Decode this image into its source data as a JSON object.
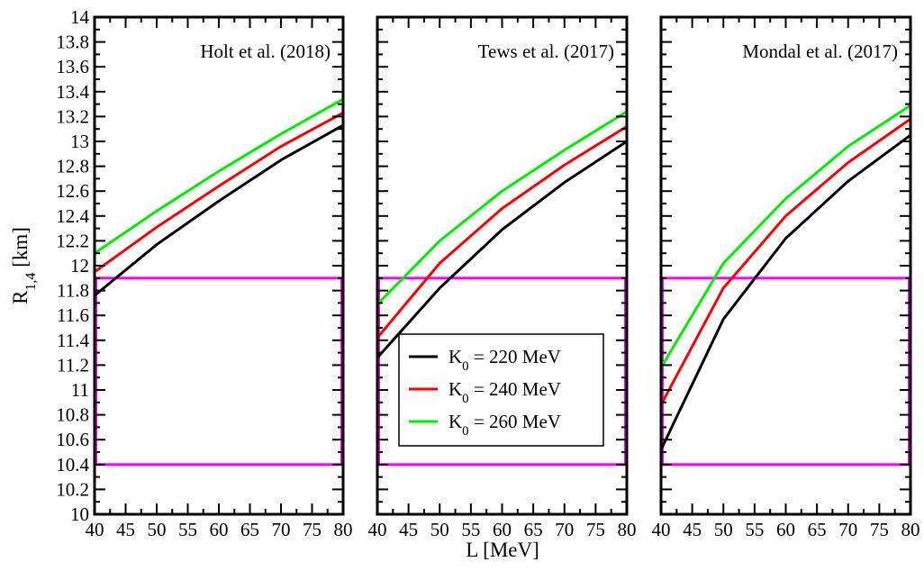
{
  "chart_data": {
    "type": "line",
    "xlabel": "L [MeV]",
    "ylabel": "R",
    "ylabel_sub": "1,4",
    "ylabel_unit": " [km]",
    "xlim": [
      40,
      80
    ],
    "ylim": [
      10,
      14
    ],
    "x_ticks": [
      40,
      45,
      50,
      55,
      60,
      65,
      70,
      75,
      80
    ],
    "x_tick_labels": [
      "40",
      "45",
      "50",
      "55",
      "60",
      "65",
      "70",
      "75",
      "80"
    ],
    "y_ticks": [
      10,
      10.2,
      10.4,
      10.6,
      10.8,
      11,
      11.2,
      11.4,
      11.6,
      11.8,
      12,
      12.2,
      12.4,
      12.6,
      12.8,
      13,
      13.2,
      13.4,
      13.6,
      13.8,
      14
    ],
    "y_tick_labels": [
      "10",
      "10.2",
      "10.4",
      "10.6",
      "10.8",
      "11",
      "11.2",
      "11.4",
      "11.6",
      "11.8",
      "12",
      "12.2",
      "12.4",
      "12.6",
      "12.8",
      "13",
      "13.2",
      "13.4",
      "13.6",
      "13.8",
      "14"
    ],
    "legend": {
      "placement": "center-panel-lower-left",
      "entries": [
        {
          "symbol": "K",
          "sub": "0",
          "rest": " = 220 MeV",
          "color": "#000000"
        },
        {
          "symbol": "K",
          "sub": "0",
          "rest": " = 240 MeV",
          "color": "#ff0000"
        },
        {
          "symbol": "K",
          "sub": "0",
          "rest": " = 260 MeV",
          "color": "#00ee00"
        }
      ]
    },
    "band": {
      "y": [
        10.4,
        11.9
      ],
      "color": "#ff00ff"
    },
    "panels": [
      {
        "title": "Holt et al. (2018)",
        "series": [
          {
            "color": "#000000",
            "x": [
              40,
              50,
              60,
              70,
              80
            ],
            "y": [
              11.76,
              12.17,
              12.52,
              12.85,
              13.13
            ]
          },
          {
            "color": "#ff0000",
            "x": [
              40,
              50,
              60,
              70,
              80
            ],
            "y": [
              11.95,
              12.31,
              12.64,
              12.96,
              13.23
            ]
          },
          {
            "color": "#00ee00",
            "x": [
              40,
              50,
              60,
              70,
              80
            ],
            "y": [
              12.1,
              12.44,
              12.76,
              13.06,
              13.34
            ]
          }
        ]
      },
      {
        "title": "Tews et al. (2017)",
        "series": [
          {
            "color": "#000000",
            "x": [
              40,
              50,
              60,
              70,
              80
            ],
            "y": [
              11.26,
              11.82,
              12.29,
              12.67,
              13.0
            ]
          },
          {
            "color": "#ff0000",
            "x": [
              40,
              50,
              60,
              70,
              80
            ],
            "y": [
              11.42,
              12.02,
              12.46,
              12.81,
              13.12
            ]
          },
          {
            "color": "#00ee00",
            "x": [
              40,
              50,
              60,
              70,
              80
            ],
            "y": [
              11.69,
              12.2,
              12.6,
              12.93,
              13.24
            ]
          }
        ]
      },
      {
        "title": "Mondal et al. (2017)",
        "series": [
          {
            "color": "#000000",
            "x": [
              40,
              50,
              60,
              70,
              80
            ],
            "y": [
              10.52,
              11.57,
              12.22,
              12.68,
              13.05
            ]
          },
          {
            "color": "#ff0000",
            "x": [
              40,
              50,
              60,
              70,
              80
            ],
            "y": [
              10.88,
              11.82,
              12.4,
              12.83,
              13.18
            ]
          },
          {
            "color": "#00ee00",
            "x": [
              40,
              50,
              60,
              70,
              80
            ],
            "y": [
              11.18,
              12.02,
              12.54,
              12.96,
              13.29
            ]
          }
        ]
      }
    ]
  }
}
